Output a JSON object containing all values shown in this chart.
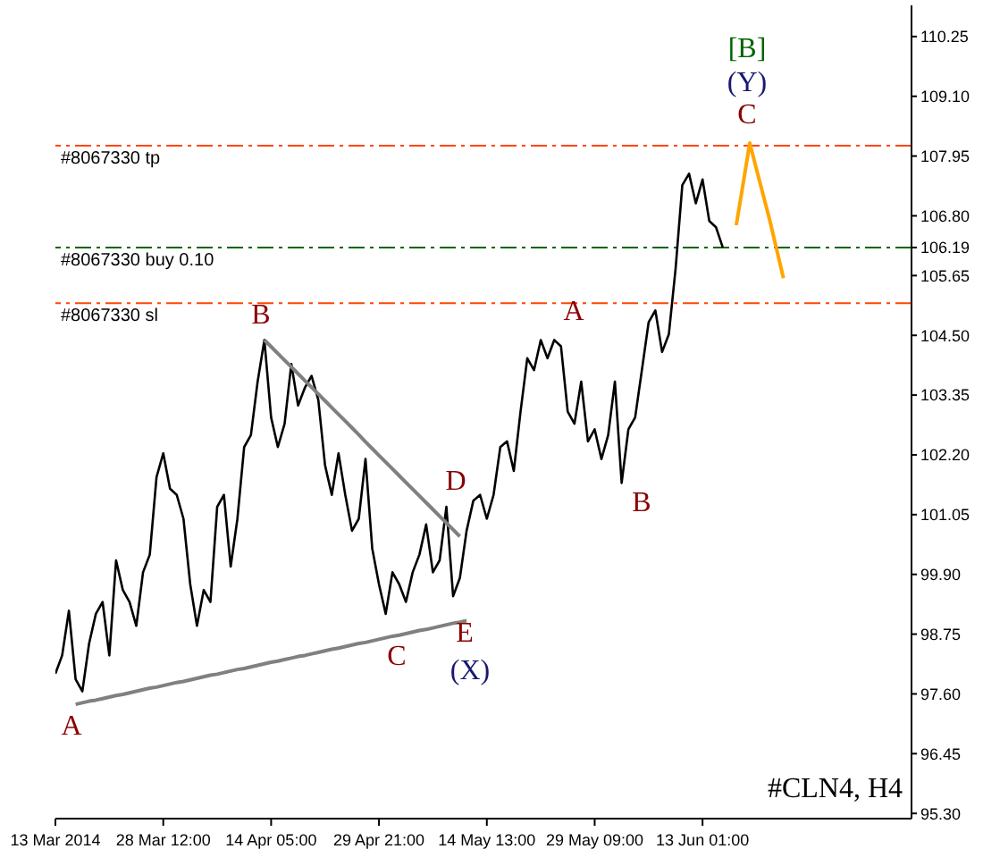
{
  "chart_data": {
    "type": "line",
    "categories": [
      "13 Mar 2014",
      null,
      null,
      null,
      null,
      null,
      null,
      null,
      null,
      null,
      null,
      null,
      null,
      null,
      null,
      null,
      "28 Mar 12:00",
      null,
      null,
      null,
      null,
      null,
      null,
      null,
      null,
      null,
      null,
      null,
      null,
      null,
      null,
      null,
      "14 Apr 05:00",
      null,
      null,
      null,
      null,
      null,
      null,
      null,
      null,
      null,
      null,
      null,
      null,
      null,
      null,
      null,
      "29 Apr 21:00",
      null,
      null,
      null,
      null,
      null,
      null,
      null,
      null,
      null,
      null,
      null,
      null,
      null,
      null,
      null,
      "14 May 13:00",
      null,
      null,
      null,
      null,
      null,
      null,
      null,
      null,
      null,
      null,
      null,
      null,
      null,
      null,
      null,
      "29 May 09:00",
      null,
      null,
      null,
      null,
      null,
      null,
      null,
      null,
      null,
      null,
      null,
      null,
      null,
      null,
      null,
      "13 Jun 01:00",
      null,
      null,
      null,
      null,
      null,
      null,
      null,
      null,
      null,
      null,
      null,
      null,
      null,
      null,
      null,
      null,
      null,
      null,
      null,
      null,
      null,
      null,
      null,
      null,
      null,
      null,
      null,
      null,
      null,
      null,
      null
    ],
    "ylim": [
      95.2,
      110.85
    ],
    "yticks": [
      {
        "value": 95.3,
        "label": "95.30"
      },
      {
        "value": 96.45,
        "label": "96.45"
      },
      {
        "value": 97.6,
        "label": "97.60"
      },
      {
        "value": 98.75,
        "label": "98.75"
      },
      {
        "value": 99.9,
        "label": "99.90"
      },
      {
        "value": 101.05,
        "label": "101.05"
      },
      {
        "value": 102.2,
        "label": "102.20"
      },
      {
        "value": 103.35,
        "label": "103.35"
      },
      {
        "value": 104.5,
        "label": "104.50"
      },
      {
        "value": 105.65,
        "label": "105.65"
      },
      {
        "value": 106.19,
        "label": "106.19"
      },
      {
        "value": 106.8,
        "label": "106.80"
      },
      {
        "value": 107.95,
        "label": "107.95"
      },
      {
        "value": 109.1,
        "label": "109.10"
      },
      {
        "value": 110.25,
        "label": "110.25"
      }
    ],
    "grid": false,
    "legend": false,
    "marker": "none",
    "series": [
      {
        "color": "#000000",
        "line_style": "solid",
        "values": [
          97.99,
          98.34,
          99.2,
          97.88,
          97.65,
          98.57,
          99.14,
          99.37,
          98.34,
          100.17,
          99.6,
          99.37,
          98.91,
          99.94,
          100.28,
          101.77,
          102.23,
          101.55,
          101.43,
          100.97,
          99.71,
          98.91,
          99.6,
          99.37,
          101.2,
          101.43,
          100.05,
          100.97,
          102.35,
          102.58,
          103.61,
          104.41,
          102.92,
          102.35,
          102.8,
          103.95,
          103.15,
          103.49,
          103.72,
          103.26,
          102.0,
          101.43,
          102.23,
          101.43,
          100.74,
          100.97,
          102.12,
          100.4,
          99.71,
          99.14,
          99.94,
          99.71,
          99.37,
          99.94,
          100.28,
          100.86,
          99.94,
          100.17,
          101.2,
          99.48,
          99.83,
          100.74,
          101.32,
          101.43,
          100.97,
          101.43,
          102.35,
          102.46,
          101.89,
          103.03,
          104.06,
          103.83,
          104.41,
          104.06,
          104.41,
          104.29,
          103.03,
          102.8,
          103.61,
          102.46,
          102.69,
          102.12,
          102.58,
          103.61,
          101.66,
          102.69,
          102.92,
          103.83,
          104.75,
          104.98,
          104.18,
          104.52,
          105.78,
          107.39,
          107.61,
          107.04,
          107.5,
          106.7,
          106.58,
          106.19,
          null,
          null,
          null,
          null,
          null,
          null,
          null,
          null,
          null,
          null,
          null,
          null,
          null,
          null,
          null,
          null,
          null,
          null,
          null,
          null,
          null,
          null,
          null,
          null,
          null,
          null,
          null,
          null
        ]
      },
      {
        "color": "#808080",
        "line_style": "solid",
        "values": [
          null,
          null,
          null,
          97.4,
          97.43,
          97.46,
          97.48,
          97.51,
          97.54,
          97.57,
          97.59,
          97.62,
          97.65,
          97.68,
          97.71,
          97.73,
          97.76,
          97.79,
          97.82,
          97.84,
          97.87,
          97.9,
          97.93,
          97.96,
          97.98,
          98.01,
          98.04,
          98.07,
          98.09,
          98.12,
          98.15,
          98.18,
          98.21,
          98.23,
          98.26,
          98.29,
          98.32,
          98.34,
          98.37,
          98.4,
          98.43,
          98.46,
          98.48,
          98.51,
          98.54,
          98.57,
          98.59,
          98.62,
          98.65,
          98.68,
          98.71,
          98.73,
          98.76,
          98.79,
          98.82,
          98.84,
          98.87,
          98.9,
          98.93,
          98.96,
          98.98,
          99.01,
          null,
          null,
          null,
          null,
          null,
          null,
          null,
          null,
          null,
          null,
          null,
          null,
          null,
          null,
          null,
          null,
          null,
          null,
          null,
          null,
          null,
          null,
          null,
          null,
          null,
          null,
          null,
          null,
          null,
          null,
          null,
          null,
          null,
          null,
          null,
          null,
          null,
          null,
          null,
          null,
          null,
          null,
          null,
          null,
          null,
          null,
          null,
          null,
          null,
          null,
          null,
          null,
          null,
          null,
          null,
          null,
          null,
          null,
          null,
          null,
          null,
          null,
          null,
          null,
          null,
          null
        ]
      },
      {
        "color": "#808080",
        "line_style": "solid",
        "values": [
          null,
          null,
          null,
          null,
          null,
          null,
          null,
          null,
          null,
          null,
          null,
          null,
          null,
          null,
          null,
          null,
          null,
          null,
          null,
          null,
          null,
          null,
          null,
          null,
          null,
          null,
          null,
          null,
          null,
          null,
          null,
          104.41,
          104.28,
          104.15,
          104.02,
          103.89,
          103.76,
          103.63,
          103.5,
          103.37,
          103.24,
          103.11,
          102.98,
          102.85,
          102.72,
          102.59,
          102.45,
          102.32,
          102.19,
          102.06,
          101.93,
          101.8,
          101.67,
          101.54,
          101.41,
          101.28,
          101.15,
          101.02,
          100.89,
          100.76,
          100.63,
          null,
          null,
          null,
          null,
          null,
          null,
          null,
          null,
          null,
          null,
          null,
          null,
          null,
          null,
          null,
          null,
          null,
          null,
          null,
          null,
          null,
          null,
          null,
          null,
          null,
          null,
          null,
          null,
          null,
          null,
          null,
          null,
          null,
          null,
          null,
          null,
          null,
          null,
          null,
          null,
          null,
          null,
          null,
          null,
          null,
          null,
          null,
          null,
          null,
          null,
          null,
          null,
          null,
          null,
          null,
          null,
          null,
          null,
          null,
          null,
          null,
          null,
          null,
          null,
          null,
          null,
          null
        ]
      },
      {
        "color": "#ffa500",
        "line_style": "solid",
        "values": [
          null,
          null,
          null,
          null,
          null,
          null,
          null,
          null,
          null,
          null,
          null,
          null,
          null,
          null,
          null,
          null,
          null,
          null,
          null,
          null,
          null,
          null,
          null,
          null,
          null,
          null,
          null,
          null,
          null,
          null,
          null,
          null,
          null,
          null,
          null,
          null,
          null,
          null,
          null,
          null,
          null,
          null,
          null,
          null,
          null,
          null,
          null,
          null,
          null,
          null,
          null,
          null,
          null,
          null,
          null,
          null,
          null,
          null,
          null,
          null,
          null,
          null,
          null,
          null,
          null,
          null,
          null,
          null,
          null,
          null,
          null,
          null,
          null,
          null,
          null,
          null,
          null,
          null,
          null,
          null,
          null,
          null,
          null,
          null,
          null,
          null,
          null,
          null,
          null,
          null,
          null,
          null,
          null,
          null,
          null,
          null,
          null,
          null,
          null,
          null,
          null,
          106.62,
          107.4,
          108.2,
          107.7,
          107.2,
          106.7,
          106.15,
          105.6,
          null,
          null,
          null,
          null,
          null,
          null,
          null,
          null,
          null,
          null,
          null,
          null,
          null,
          null,
          null,
          null,
          null,
          null,
          null
        ]
      }
    ],
    "ref_lines": [
      {
        "axis": "y",
        "value": 108.15,
        "label": "#8067330 tp",
        "color": "#ff4500",
        "line_style": "dashed"
      },
      {
        "axis": "y",
        "value": 106.19,
        "label": "#8067330 buy 0.10",
        "color": "#006400",
        "line_style": "dashed"
      },
      {
        "axis": "y",
        "value": 105.12,
        "label": "#8067330 sl",
        "color": "#ff4500",
        "line_style": "dashed"
      }
    ],
    "annotations": [
      "A",
      "B",
      "C",
      "D",
      "E",
      "(X)",
      "A",
      "B",
      "C",
      "(Y)",
      "[B]",
      "#CLN4, H4"
    ]
  }
}
